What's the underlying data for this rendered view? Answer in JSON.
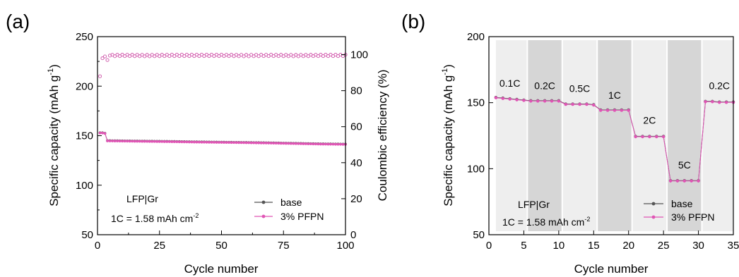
{
  "colors": {
    "base": "#555555",
    "pfpn": "#e055b5",
    "band_light": "#eeeeee",
    "band_dark": "#d6d6d6"
  },
  "chart_data": [
    {
      "panel_label": "(a)",
      "type": "scatter",
      "xlabel": "Cycle number",
      "ylabel": "Specific capacity (mAh g",
      "ylabel_sup": "-1",
      "ylabel_close": ")",
      "y2label": "Coulombic efficiency (%)",
      "xlim": [
        0,
        100
      ],
      "ylim": [
        50,
        250
      ],
      "y2lim": [
        0,
        110
      ],
      "xticks": [
        "0",
        "25",
        "50",
        "75",
        "100"
      ],
      "yticks": [
        "50",
        "100",
        "150",
        "200",
        "250"
      ],
      "y2ticks": [
        "0",
        "20",
        "40",
        "60",
        "80",
        "100"
      ],
      "annotation_1": "LFP|Gr",
      "annotation_2": "1C = 1.58 mAh cm",
      "annotation_2_sup": "-2",
      "legend": [
        "base",
        "3% PFPN"
      ],
      "legend_position": "bottom-right",
      "capacity_points": [
        [
          1,
          153
        ],
        [
          2,
          153
        ],
        [
          3,
          152.5
        ],
        [
          4,
          145
        ],
        [
          10,
          144.8
        ],
        [
          20,
          144.5
        ],
        [
          30,
          144.2
        ],
        [
          40,
          143.8
        ],
        [
          50,
          143.5
        ],
        [
          60,
          143.2
        ],
        [
          70,
          142.8
        ],
        [
          80,
          142.3
        ],
        [
          90,
          141.8
        ],
        [
          100,
          141.5
        ]
      ],
      "ce_points": [
        [
          1,
          88
        ],
        [
          2,
          98
        ],
        [
          3,
          99
        ],
        [
          4,
          97
        ],
        [
          5,
          99.5
        ],
        [
          10,
          99.6
        ],
        [
          20,
          99.5
        ],
        [
          30,
          99.6
        ],
        [
          40,
          99.6
        ],
        [
          50,
          99.6
        ],
        [
          60,
          99.5
        ],
        [
          70,
          99.6
        ],
        [
          80,
          99.5
        ],
        [
          90,
          99.6
        ],
        [
          100,
          99.6
        ]
      ]
    },
    {
      "panel_label": "(b)",
      "type": "line",
      "xlabel": "Cycle number",
      "ylabel": "Specific capacity (mAh g",
      "ylabel_sup": "-1",
      "ylabel_close": ")",
      "xlim": [
        0,
        35
      ],
      "ylim": [
        50,
        200
      ],
      "xticks": [
        "0",
        "5",
        "10",
        "15",
        "20",
        "25",
        "30",
        "35"
      ],
      "yticks": [
        "50",
        "100",
        "150",
        "200"
      ],
      "rate_labels": [
        {
          "label": "0.1C",
          "x": 3,
          "y": 160
        },
        {
          "label": "0.2C",
          "x": 8,
          "y": 158
        },
        {
          "label": "0.5C",
          "x": 13,
          "y": 156
        },
        {
          "label": "1C",
          "x": 18,
          "y": 151
        },
        {
          "label": "2C",
          "x": 23,
          "y": 132
        },
        {
          "label": "5C",
          "x": 28,
          "y": 98
        },
        {
          "label": "0.2C",
          "x": 33,
          "y": 158
        }
      ],
      "annotation_1": "LFP|Gr",
      "annotation_2": "1C = 1.58 mAh cm",
      "annotation_2_sup": "-2",
      "legend": [
        "base",
        "3% PFPN"
      ],
      "legend_position": "bottom-right",
      "series": [
        {
          "name": "base",
          "values": [
            [
              1,
              154
            ],
            [
              2,
              153.5
            ],
            [
              3,
              153
            ],
            [
              4,
              152.5
            ],
            [
              5,
              152
            ],
            [
              6,
              151.5
            ],
            [
              7,
              151.5
            ],
            [
              8,
              151.5
            ],
            [
              9,
              151.5
            ],
            [
              10,
              151.5
            ],
            [
              11,
              149
            ],
            [
              12,
              149
            ],
            [
              13,
              149
            ],
            [
              14,
              149
            ],
            [
              15,
              148.5
            ],
            [
              16,
              144.5
            ],
            [
              17,
              144.5
            ],
            [
              18,
              144.5
            ],
            [
              19,
              144.5
            ],
            [
              20,
              144.5
            ],
            [
              21,
              124.5
            ],
            [
              22,
              124.5
            ],
            [
              23,
              124.5
            ],
            [
              24,
              124.5
            ],
            [
              25,
              124.5
            ],
            [
              26,
              91
            ],
            [
              27,
              91
            ],
            [
              28,
              91
            ],
            [
              29,
              91
            ],
            [
              30,
              91
            ],
            [
              31,
              151
            ],
            [
              32,
              151
            ],
            [
              33,
              150.5
            ],
            [
              34,
              150.5
            ],
            [
              35,
              150.5
            ]
          ]
        },
        {
          "name": "3% PFPN",
          "values": [
            [
              1,
              154
            ],
            [
              2,
              153.5
            ],
            [
              3,
              153
            ],
            [
              4,
              152.5
            ],
            [
              5,
              152
            ],
            [
              6,
              151.5
            ],
            [
              7,
              151.5
            ],
            [
              8,
              151.5
            ],
            [
              9,
              151.5
            ],
            [
              10,
              151.5
            ],
            [
              11,
              149
            ],
            [
              12,
              149
            ],
            [
              13,
              149
            ],
            [
              14,
              149
            ],
            [
              15,
              148.5
            ],
            [
              16,
              144.5
            ],
            [
              17,
              144.5
            ],
            [
              18,
              144.5
            ],
            [
              19,
              144.5
            ],
            [
              20,
              144.5
            ],
            [
              21,
              124.5
            ],
            [
              22,
              124.5
            ],
            [
              23,
              124.5
            ],
            [
              24,
              124.5
            ],
            [
              25,
              124.5
            ],
            [
              26,
              91
            ],
            [
              27,
              91
            ],
            [
              28,
              91
            ],
            [
              29,
              91
            ],
            [
              30,
              91
            ],
            [
              31,
              151
            ],
            [
              32,
              151
            ],
            [
              33,
              150.5
            ],
            [
              34,
              150.5
            ],
            [
              35,
              150.5
            ]
          ]
        }
      ]
    }
  ]
}
